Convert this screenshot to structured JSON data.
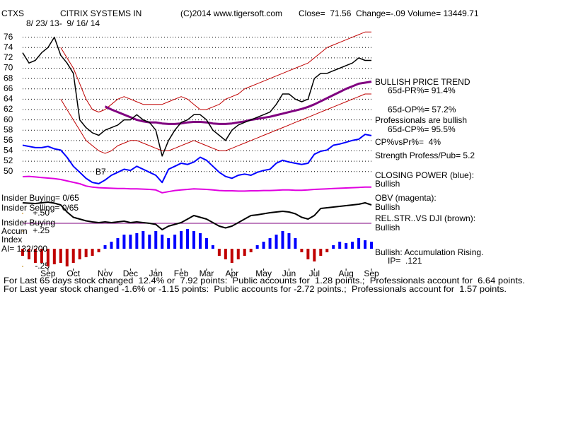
{
  "chart_data": {
    "type": "stock",
    "header": [
      "CTXS",
      "CITRIX SYSTEMS IN",
      "(C)2014 www.tigersoft.com",
      "Close=  71.56  Change=-.09 Volume= 13449.71"
    ],
    "date_range": "8/ 23/ 13-  9/ 16/ 14",
    "xlim": [
      0,
      55
    ],
    "xticks": [
      {
        "value": 4,
        "label": "Sep"
      },
      {
        "value": 8,
        "label": "Oct"
      },
      {
        "value": 13,
        "label": "Nov"
      },
      {
        "value": 17,
        "label": "Dec"
      },
      {
        "value": 21,
        "label": "Jan"
      },
      {
        "value": 25,
        "label": "Feb"
      },
      {
        "value": 29,
        "label": "Mar"
      },
      {
        "value": 33,
        "label": "Apr"
      },
      {
        "value": 38,
        "label": "May"
      },
      {
        "value": 42,
        "label": "Jun"
      },
      {
        "value": 46,
        "label": "Jul"
      },
      {
        "value": 51,
        "label": "Aug"
      },
      {
        "value": 55,
        "label": "Sep"
      }
    ],
    "price": {
      "ylim": [
        49,
        78
      ],
      "yticks": [
        50,
        52,
        54,
        56,
        58,
        60,
        62,
        64,
        66,
        68,
        70,
        72,
        74,
        76
      ],
      "grid": true,
      "series": [
        {
          "color": "#000000",
          "values": [
            73,
            71,
            71.5,
            73,
            74,
            76,
            72.5,
            71,
            69,
            60,
            58.5,
            57.5,
            57,
            58,
            58.5,
            59,
            60,
            60,
            61,
            60,
            59.5,
            58,
            53,
            56,
            58,
            59.5,
            60,
            61,
            61,
            60,
            58,
            57,
            56,
            58,
            59,
            59.5,
            60,
            60.5,
            61,
            61.5,
            63,
            65,
            65,
            64,
            63.5,
            64,
            68,
            69,
            69,
            69.5,
            70,
            70.5,
            71,
            72,
            71.5,
            71.5
          ]
        },
        {
          "color": "#800080",
          "values": [
            null,
            null,
            null,
            null,
            null,
            null,
            null,
            null,
            null,
            null,
            null,
            null,
            null,
            62.6,
            62,
            61.5,
            61,
            60.5,
            60,
            59.7,
            59.5,
            59.5,
            59.3,
            59.2,
            59.2,
            59.3,
            59.5,
            59.6,
            59.6,
            59.5,
            59.3,
            59.2,
            59.2,
            59.3,
            59.5,
            59.7,
            60,
            60.2,
            60.4,
            60.6,
            60.9,
            61.2,
            61.5,
            61.8,
            62.1,
            62.5,
            63,
            63.6,
            64.2,
            64.8,
            65.4,
            66,
            66.5,
            67,
            67.2,
            67.4
          ]
        },
        {
          "color": "#c00000",
          "values": [
            null,
            null,
            null,
            null,
            null,
            null,
            74,
            72,
            70,
            67,
            64,
            62,
            61.5,
            62,
            63,
            64,
            64.5,
            64,
            63.5,
            63,
            63,
            63,
            63,
            63.5,
            64,
            64.5,
            64,
            63,
            62,
            62,
            62.5,
            63,
            64,
            64.5,
            65,
            66,
            66.5,
            67,
            67.5,
            68,
            68.5,
            69,
            69.5,
            70,
            70.5,
            71,
            72,
            73,
            74,
            74.5,
            75,
            75.5,
            76,
            76.5,
            77,
            77
          ]
        },
        {
          "color": "#c00000",
          "values": [
            null,
            null,
            null,
            null,
            null,
            null,
            64,
            62,
            60,
            58,
            56,
            55,
            54,
            53.5,
            54,
            55,
            55.5,
            56,
            56,
            55.5,
            55,
            54.5,
            54,
            54,
            54.5,
            55,
            55.5,
            56,
            55.5,
            55,
            54.5,
            54,
            54,
            54.5,
            55,
            55.5,
            56,
            56.5,
            57,
            57.5,
            58,
            58.5,
            59,
            59.5,
            60,
            60.5,
            61,
            61.5,
            62,
            62.5,
            63,
            63.5,
            64,
            64.5,
            65,
            65
          ]
        }
      ]
    },
    "closing_power": {
      "ylim": [
        0,
        100
      ],
      "color": "#0000ff",
      "values": [
        70,
        68,
        66,
        66,
        68,
        64,
        62,
        50,
        35,
        25,
        15,
        8,
        6,
        12,
        20,
        25,
        30,
        28,
        35,
        30,
        25,
        20,
        8,
        30,
        35,
        40,
        38,
        42,
        50,
        45,
        35,
        25,
        18,
        15,
        20,
        22,
        20,
        25,
        28,
        30,
        40,
        45,
        42,
        40,
        38,
        40,
        55,
        60,
        62,
        70,
        72,
        75,
        78,
        80,
        88,
        86
      ]
    },
    "obv": {
      "ylim": [
        0,
        100
      ],
      "color": "#e000e0",
      "values": [
        75,
        76,
        74,
        72,
        70,
        68,
        65,
        60,
        55,
        50,
        42,
        38,
        36,
        35,
        34,
        33,
        33,
        32,
        32,
        31,
        30,
        28,
        18,
        22,
        26,
        28,
        30,
        32,
        31,
        30,
        28,
        26,
        25,
        25,
        24,
        24,
        25,
        25,
        26,
        26,
        27,
        28,
        28,
        27,
        27,
        28,
        30,
        31,
        32,
        33,
        34,
        35,
        36,
        37,
        38,
        38
      ]
    },
    "rel_str": {
      "ylim": [
        0,
        100
      ],
      "color": "#000000",
      "values": [
        86,
        85,
        84,
        86,
        88,
        85,
        80,
        60,
        45,
        40,
        35,
        32,
        30,
        32,
        30,
        32,
        34,
        30,
        32,
        30,
        28,
        25,
        10,
        20,
        25,
        30,
        40,
        50,
        45,
        40,
        30,
        20,
        15,
        20,
        30,
        40,
        50,
        52,
        55,
        58,
        60,
        62,
        60,
        55,
        45,
        40,
        50,
        70,
        72,
        74,
        76,
        78,
        80,
        82,
        86,
        80
      ]
    },
    "accum": {
      "ylim": [
        -0.3,
        0.5
      ],
      "yticks": [
        {
          "value": 0.5,
          "label": "+.50"
        },
        {
          "value": 0.25,
          "label": "+.25"
        },
        {
          "value": -0.25,
          "label": "-.25"
        }
      ],
      "color_pos": "#0000ff",
      "color_neg": "#c00000",
      "values": [
        -0.1,
        -0.15,
        -0.2,
        -0.2,
        -0.25,
        -0.22,
        -0.2,
        -0.25,
        -0.2,
        -0.15,
        -0.12,
        -0.1,
        -0.05,
        0.05,
        0.1,
        0.15,
        0.2,
        0.2,
        0.22,
        0.25,
        0.2,
        0.25,
        0.2,
        0.15,
        0.2,
        0.25,
        0.28,
        0.25,
        0.22,
        0.15,
        0.05,
        -0.1,
        -0.15,
        -0.2,
        -0.15,
        -0.1,
        -0.05,
        0.05,
        0.1,
        0.15,
        0.2,
        0.25,
        0.22,
        0.15,
        -0.05,
        -0.15,
        -0.18,
        -0.1,
        -0.05,
        0.05,
        0.1,
        0.08,
        0.1,
        0.15,
        0.12,
        0.1
      ]
    }
  },
  "text": {
    "right": [
      "BULLISH PRICE TREND",
      "65d-PR%= 91.4%",
      "65d-OP%= 57.2%",
      "Professionals are bullish",
      "65d-CP%= 95.5%",
      "CP%vsPr%=  4%",
      "Strength Profess/Pub= 5.2",
      "CLOSING POWER (blue):",
      "Bullish",
      "OBV (magenta):",
      "Bullish",
      "REL.STR..VS DJI (brown):",
      "Bullish",
      "Bullish: Accumulation Rising.",
      "IP=  .121"
    ],
    "left": [
      "Insider Buying= 0/65",
      "Insider Selling= 0/65",
      "Insider Buying",
      "Accum",
      "Index",
      "AI= 132/200",
      "B7"
    ],
    "footer": [
      "For Last 65 days stock changed  12.4% or  7.92 points:  Public accounts for  1.28 points.;  Professionals account for  6.64 points.",
      "For Last year stock changed -1.6% or -1.15 points:  Public accounts for -2.72 points.;  Professionals account for  1.57 points."
    ]
  }
}
